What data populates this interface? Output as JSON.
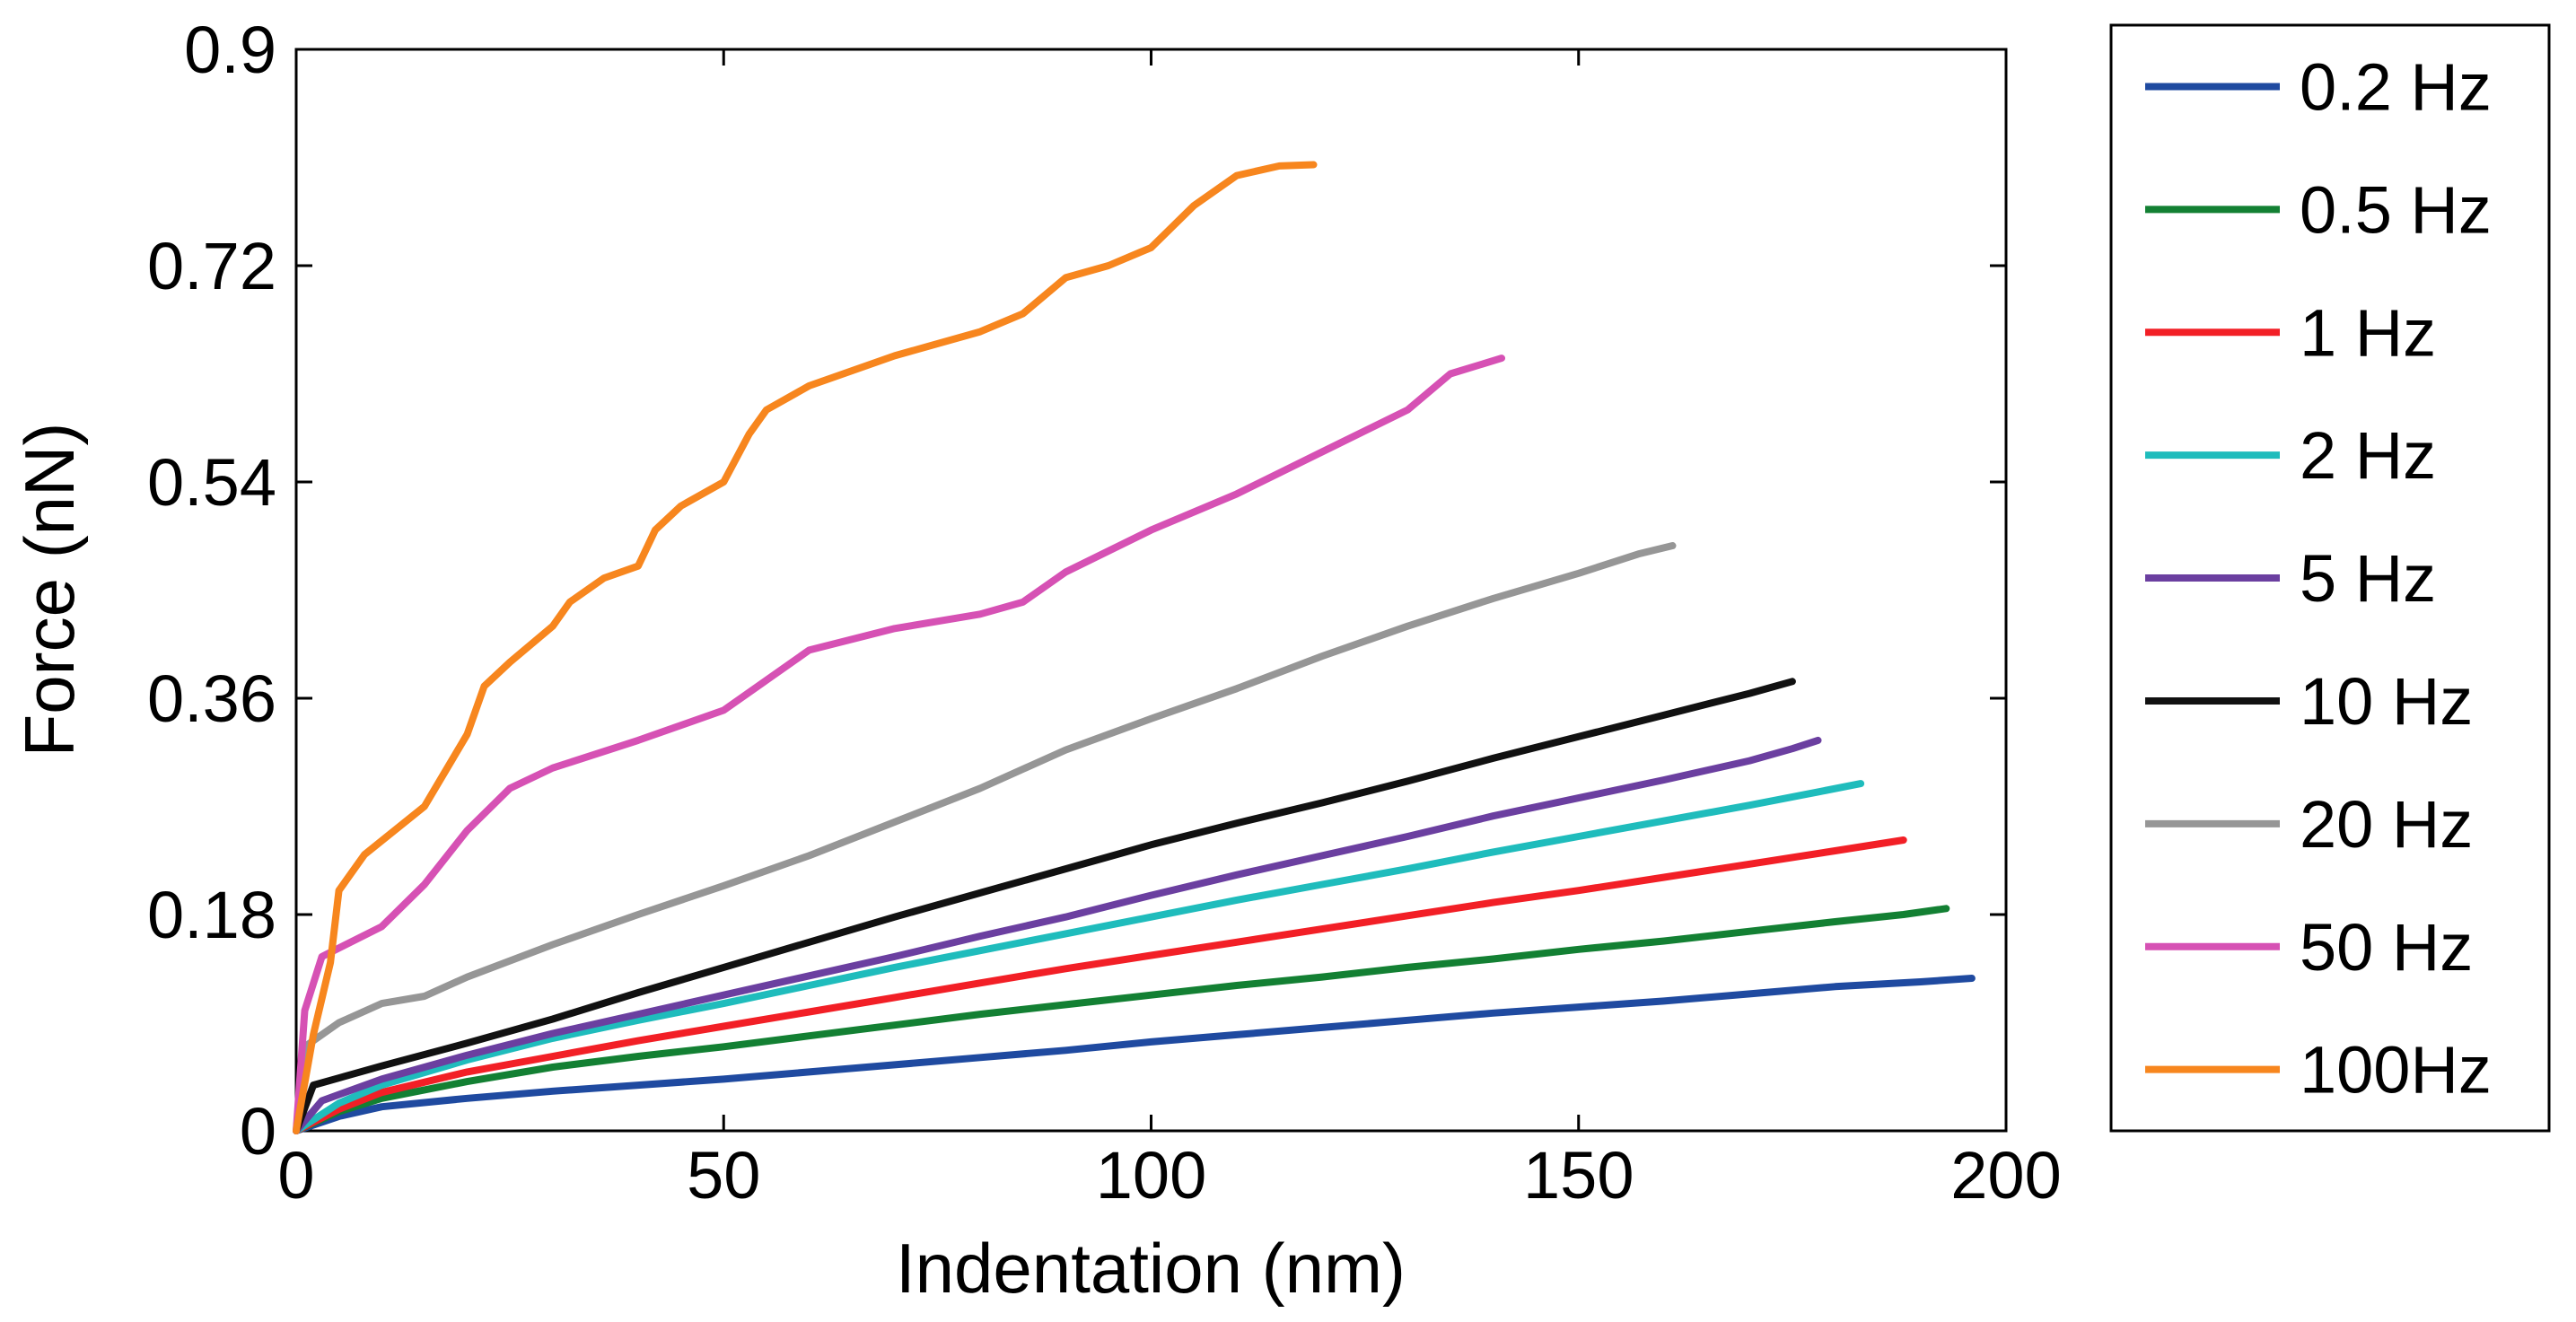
{
  "chart_data": {
    "type": "line",
    "xlabel": "Indentation (nm)",
    "ylabel": "Force (nN)",
    "xlim": [
      0,
      200
    ],
    "ylim": [
      0,
      0.9
    ],
    "x_ticks": [
      "0",
      "50",
      "100",
      "150",
      "200"
    ],
    "y_ticks": [
      "0",
      "0.18",
      "0.36",
      "0.54",
      "0.72",
      "0.9"
    ],
    "grid": false,
    "legend_position": "outside-right",
    "series": [
      {
        "name": "0.2 Hz",
        "color": "#1f4aa0",
        "points": [
          [
            0,
            0.0
          ],
          [
            5,
            0.012
          ],
          [
            10,
            0.02
          ],
          [
            20,
            0.027
          ],
          [
            30,
            0.033
          ],
          [
            40,
            0.038
          ],
          [
            50,
            0.043
          ],
          [
            60,
            0.049
          ],
          [
            70,
            0.055
          ],
          [
            80,
            0.061
          ],
          [
            90,
            0.067
          ],
          [
            100,
            0.074
          ],
          [
            110,
            0.08
          ],
          [
            120,
            0.086
          ],
          [
            130,
            0.092
          ],
          [
            140,
            0.098
          ],
          [
            150,
            0.103
          ],
          [
            160,
            0.108
          ],
          [
            170,
            0.114
          ],
          [
            180,
            0.12
          ],
          [
            190,
            0.124
          ],
          [
            196,
            0.127
          ]
        ]
      },
      {
        "name": "0.5 Hz",
        "color": "#138033",
        "points": [
          [
            0,
            0.0
          ],
          [
            5,
            0.016
          ],
          [
            10,
            0.027
          ],
          [
            20,
            0.041
          ],
          [
            30,
            0.053
          ],
          [
            40,
            0.062
          ],
          [
            50,
            0.07
          ],
          [
            60,
            0.079
          ],
          [
            70,
            0.088
          ],
          [
            80,
            0.097
          ],
          [
            90,
            0.105
          ],
          [
            100,
            0.113
          ],
          [
            110,
            0.121
          ],
          [
            120,
            0.128
          ],
          [
            130,
            0.136
          ],
          [
            140,
            0.143
          ],
          [
            150,
            0.151
          ],
          [
            160,
            0.158
          ],
          [
            170,
            0.166
          ],
          [
            180,
            0.174
          ],
          [
            188,
            0.18
          ],
          [
            193,
            0.185
          ]
        ]
      },
      {
        "name": "1 Hz",
        "color": "#f21f26",
        "points": [
          [
            0,
            0.0
          ],
          [
            5,
            0.018
          ],
          [
            10,
            0.032
          ],
          [
            20,
            0.049
          ],
          [
            30,
            0.062
          ],
          [
            40,
            0.075
          ],
          [
            50,
            0.087
          ],
          [
            60,
            0.099
          ],
          [
            70,
            0.111
          ],
          [
            80,
            0.123
          ],
          [
            90,
            0.135
          ],
          [
            100,
            0.146
          ],
          [
            110,
            0.157
          ],
          [
            120,
            0.168
          ],
          [
            130,
            0.179
          ],
          [
            140,
            0.19
          ],
          [
            150,
            0.2
          ],
          [
            160,
            0.211
          ],
          [
            170,
            0.222
          ],
          [
            180,
            0.233
          ],
          [
            188,
            0.242
          ]
        ]
      },
      {
        "name": "2 Hz",
        "color": "#1fbcbc",
        "points": [
          [
            0,
            0.0
          ],
          [
            5,
            0.023
          ],
          [
            10,
            0.038
          ],
          [
            20,
            0.059
          ],
          [
            30,
            0.077
          ],
          [
            40,
            0.092
          ],
          [
            50,
            0.106
          ],
          [
            60,
            0.121
          ],
          [
            70,
            0.136
          ],
          [
            80,
            0.15
          ],
          [
            90,
            0.164
          ],
          [
            100,
            0.178
          ],
          [
            110,
            0.192
          ],
          [
            120,
            0.205
          ],
          [
            130,
            0.218
          ],
          [
            140,
            0.232
          ],
          [
            150,
            0.245
          ],
          [
            160,
            0.258
          ],
          [
            170,
            0.271
          ],
          [
            178,
            0.282
          ],
          [
            183,
            0.289
          ]
        ]
      },
      {
        "name": "5 Hz",
        "color": "#6b3fa0",
        "points": [
          [
            0,
            0.0
          ],
          [
            3,
            0.025
          ],
          [
            10,
            0.043
          ],
          [
            20,
            0.063
          ],
          [
            30,
            0.081
          ],
          [
            40,
            0.097
          ],
          [
            50,
            0.113
          ],
          [
            60,
            0.129
          ],
          [
            70,
            0.145
          ],
          [
            80,
            0.162
          ],
          [
            90,
            0.178
          ],
          [
            100,
            0.196
          ],
          [
            110,
            0.213
          ],
          [
            120,
            0.229
          ],
          [
            130,
            0.245
          ],
          [
            140,
            0.262
          ],
          [
            150,
            0.277
          ],
          [
            160,
            0.292
          ],
          [
            170,
            0.308
          ],
          [
            175,
            0.318
          ],
          [
            178,
            0.325
          ]
        ]
      },
      {
        "name": "10 Hz",
        "color": "#111111",
        "points": [
          [
            0,
            0.0
          ],
          [
            2,
            0.038
          ],
          [
            10,
            0.054
          ],
          [
            20,
            0.073
          ],
          [
            30,
            0.093
          ],
          [
            40,
            0.115
          ],
          [
            50,
            0.136
          ],
          [
            60,
            0.157
          ],
          [
            70,
            0.178
          ],
          [
            80,
            0.198
          ],
          [
            90,
            0.218
          ],
          [
            100,
            0.238
          ],
          [
            110,
            0.256
          ],
          [
            120,
            0.273
          ],
          [
            130,
            0.291
          ],
          [
            140,
            0.31
          ],
          [
            150,
            0.328
          ],
          [
            160,
            0.346
          ],
          [
            170,
            0.364
          ],
          [
            175,
            0.374
          ]
        ]
      },
      {
        "name": "20 Hz",
        "color": "#969696",
        "points": [
          [
            0,
            0.0
          ],
          [
            1,
            0.07
          ],
          [
            5,
            0.09
          ],
          [
            10,
            0.106
          ],
          [
            15,
            0.112
          ],
          [
            20,
            0.128
          ],
          [
            30,
            0.155
          ],
          [
            40,
            0.18
          ],
          [
            50,
            0.204
          ],
          [
            60,
            0.229
          ],
          [
            70,
            0.257
          ],
          [
            80,
            0.285
          ],
          [
            90,
            0.317
          ],
          [
            100,
            0.343
          ],
          [
            110,
            0.368
          ],
          [
            120,
            0.395
          ],
          [
            130,
            0.42
          ],
          [
            140,
            0.443
          ],
          [
            150,
            0.464
          ],
          [
            157,
            0.48
          ],
          [
            161,
            0.487
          ]
        ]
      },
      {
        "name": "50 Hz",
        "color": "#d651b4",
        "points": [
          [
            0,
            0.0
          ],
          [
            1,
            0.1
          ],
          [
            3,
            0.145
          ],
          [
            10,
            0.17
          ],
          [
            15,
            0.205
          ],
          [
            20,
            0.25
          ],
          [
            25,
            0.285
          ],
          [
            30,
            0.302
          ],
          [
            40,
            0.325
          ],
          [
            50,
            0.35
          ],
          [
            55,
            0.375
          ],
          [
            60,
            0.4
          ],
          [
            70,
            0.418
          ],
          [
            80,
            0.43
          ],
          [
            85,
            0.44
          ],
          [
            90,
            0.465
          ],
          [
            100,
            0.5
          ],
          [
            110,
            0.53
          ],
          [
            120,
            0.565
          ],
          [
            130,
            0.6
          ],
          [
            135,
            0.63
          ],
          [
            141,
            0.643
          ]
        ]
      },
      {
        "name": "100Hz",
        "color": "#f7861e",
        "points": [
          [
            0,
            0.0
          ],
          [
            2,
            0.08
          ],
          [
            4,
            0.14
          ],
          [
            5,
            0.2
          ],
          [
            8,
            0.23
          ],
          [
            15,
            0.27
          ],
          [
            20,
            0.33
          ],
          [
            22,
            0.37
          ],
          [
            25,
            0.39
          ],
          [
            30,
            0.42
          ],
          [
            32,
            0.44
          ],
          [
            36,
            0.46
          ],
          [
            40,
            0.47
          ],
          [
            42,
            0.5
          ],
          [
            45,
            0.52
          ],
          [
            50,
            0.54
          ],
          [
            53,
            0.58
          ],
          [
            55,
            0.6
          ],
          [
            60,
            0.62
          ],
          [
            70,
            0.645
          ],
          [
            80,
            0.665
          ],
          [
            85,
            0.68
          ],
          [
            90,
            0.71
          ],
          [
            95,
            0.72
          ],
          [
            100,
            0.735
          ],
          [
            105,
            0.77
          ],
          [
            110,
            0.795
          ],
          [
            115,
            0.803
          ],
          [
            119,
            0.804
          ]
        ]
      }
    ]
  }
}
